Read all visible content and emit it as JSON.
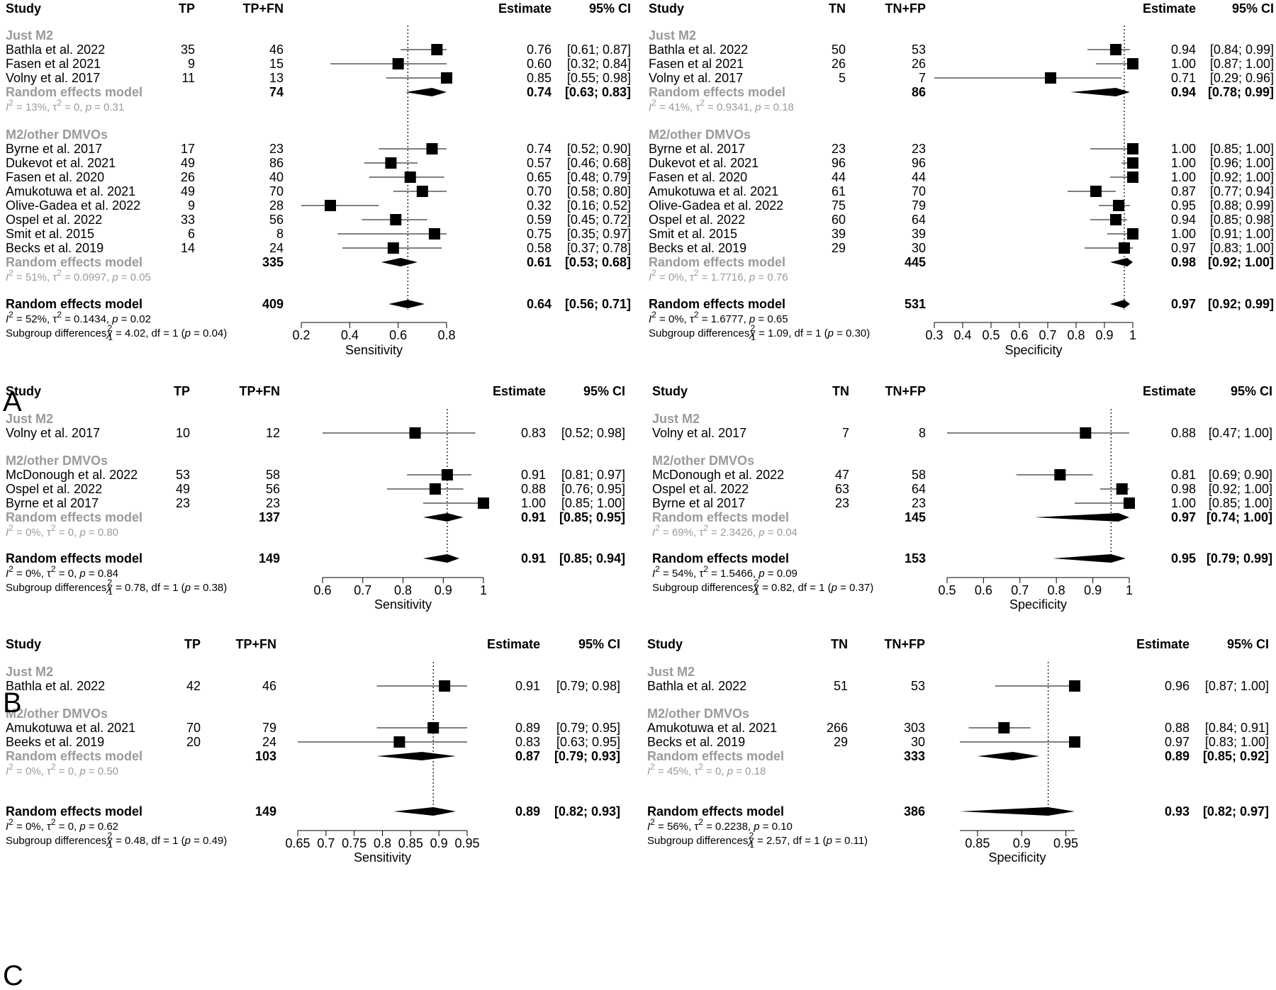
{
  "figure_labels": [
    "A",
    "B",
    "C"
  ],
  "chart_data": [
    {
      "type": "forest",
      "panel": "A",
      "measure": "Sensitivity",
      "columns": {
        "study": "Study",
        "n1": "TP",
        "n2": "TP+FN",
        "estimate": "Estimate",
        "ci": "95% CI"
      },
      "xlabel": "Sensitivity",
      "xlim": [
        0.2,
        0.8
      ],
      "xticks": [
        "0.2",
        "0.4",
        "0.6",
        "0.8"
      ],
      "ref": 0.64,
      "groups": [
        {
          "name": "Just M2",
          "studies": [
            {
              "study": "Bathla et al. 2022",
              "n1": "35",
              "n2": "46",
              "est": 0.76,
              "lo": 0.61,
              "hi": 0.87,
              "est_txt": "0.76",
              "ci_txt": "[0.61; 0.87]"
            },
            {
              "study": "Fasen et al 2021",
              "n1": "9",
              "n2": "15",
              "est": 0.6,
              "lo": 0.32,
              "hi": 0.84,
              "est_txt": "0.60",
              "ci_txt": "[0.32; 0.84]"
            },
            {
              "study": "Volny et al. 2017",
              "n1": "11",
              "n2": "13",
              "est": 0.85,
              "lo": 0.55,
              "hi": 0.98,
              "est_txt": "0.85",
              "ci_txt": "[0.55; 0.98]"
            }
          ],
          "pooled": {
            "label": "Random effects model",
            "total": "74",
            "est": 0.74,
            "lo": 0.63,
            "hi": 0.83,
            "est_txt": "0.74",
            "ci_txt": "[0.63; 0.83]"
          },
          "het": {
            "i2": "13%",
            "tau2": "0",
            "p": "0.31"
          }
        },
        {
          "name": "M2/other DMVOs",
          "studies": [
            {
              "study": "Byrne et al. 2017",
              "n1": "17",
              "n2": "23",
              "est": 0.74,
              "lo": 0.52,
              "hi": 0.9,
              "est_txt": "0.74",
              "ci_txt": "[0.52; 0.90]"
            },
            {
              "study": "Dukevot et al. 2021",
              "n1": "49",
              "n2": "86",
              "est": 0.57,
              "lo": 0.46,
              "hi": 0.68,
              "est_txt": "0.57",
              "ci_txt": "[0.46; 0.68]"
            },
            {
              "study": "Fasen et al. 2020",
              "n1": "26",
              "n2": "40",
              "est": 0.65,
              "lo": 0.48,
              "hi": 0.79,
              "est_txt": "0.65",
              "ci_txt": "[0.48; 0.79]"
            },
            {
              "study": "Amukotuwa et al. 2021",
              "n1": "49",
              "n2": "70",
              "est": 0.7,
              "lo": 0.58,
              "hi": 0.8,
              "est_txt": "0.70",
              "ci_txt": "[0.58; 0.80]"
            },
            {
              "study": "Olive-Gadea et al. 2022",
              "n1": "9",
              "n2": "28",
              "est": 0.32,
              "lo": 0.16,
              "hi": 0.52,
              "est_txt": "0.32",
              "ci_txt": "[0.16; 0.52]"
            },
            {
              "study": "Ospel et al. 2022",
              "n1": "33",
              "n2": "56",
              "est": 0.59,
              "lo": 0.45,
              "hi": 0.72,
              "est_txt": "0.59",
              "ci_txt": "[0.45; 0.72]"
            },
            {
              "study": "Smit et al. 2015",
              "n1": "6",
              "n2": "8",
              "est": 0.75,
              "lo": 0.35,
              "hi": 0.97,
              "est_txt": "0.75",
              "ci_txt": "[0.35; 0.97]"
            },
            {
              "study": "Becks et al. 2019",
              "n1": "14",
              "n2": "24",
              "est": 0.58,
              "lo": 0.37,
              "hi": 0.78,
              "est_txt": "0.58",
              "ci_txt": "[0.37; 0.78]"
            }
          ],
          "pooled": {
            "label": "Random effects model",
            "total": "335",
            "est": 0.61,
            "lo": 0.53,
            "hi": 0.68,
            "est_txt": "0.61",
            "ci_txt": "[0.53; 0.68]"
          },
          "het": {
            "i2": "51%",
            "tau2": "0.0997",
            "p": "0.05"
          }
        }
      ],
      "overall": {
        "label": "Random effects model",
        "total": "409",
        "est": 0.64,
        "lo": 0.56,
        "hi": 0.71,
        "est_txt": "0.64",
        "ci_txt": "[0.56; 0.71]",
        "het": {
          "i2": "52%",
          "tau2": "0.1434",
          "p": "0.02"
        },
        "subgroup": {
          "label": "Subgroup differences",
          "chi2": "4.02",
          "df": "1",
          "p": "0.04"
        }
      }
    },
    {
      "type": "forest",
      "panel": "A",
      "measure": "Specificity",
      "columns": {
        "study": "Study",
        "n1": "TN",
        "n2": "TN+FP",
        "estimate": "Estimate",
        "ci": "95% CI"
      },
      "xlabel": "Specificity",
      "xlim": [
        0.3,
        1.0
      ],
      "xticks": [
        "0.3",
        "0.4",
        "0.5",
        "0.6",
        "0.7",
        "0.8",
        "0.9",
        "1"
      ],
      "ref": 0.97,
      "groups": [
        {
          "name": "Just M2",
          "studies": [
            {
              "study": "Bathla et al. 2022",
              "n1": "50",
              "n2": "53",
              "est": 0.94,
              "lo": 0.84,
              "hi": 0.99,
              "est_txt": "0.94",
              "ci_txt": "[0.84; 0.99]"
            },
            {
              "study": "Fasen et al 2021",
              "n1": "26",
              "n2": "26",
              "est": 1.0,
              "lo": 0.87,
              "hi": 1.0,
              "est_txt": "1.00",
              "ci_txt": "[0.87; 1.00]"
            },
            {
              "study": "Volny et al. 2017",
              "n1": "5",
              "n2": "7",
              "est": 0.71,
              "lo": 0.29,
              "hi": 0.96,
              "est_txt": "0.71",
              "ci_txt": "[0.29; 0.96]"
            }
          ],
          "pooled": {
            "label": "Random effects model",
            "total": "86",
            "est": 0.94,
            "lo": 0.78,
            "hi": 0.99,
            "est_txt": "0.94",
            "ci_txt": "[0.78; 0.99]"
          },
          "het": {
            "i2": "41%",
            "tau2": "0.9341",
            "p": "0.18"
          }
        },
        {
          "name": "M2/other DMVOs",
          "studies": [
            {
              "study": "Byrne et al. 2017",
              "n1": "23",
              "n2": "23",
              "est": 1.0,
              "lo": 0.85,
              "hi": 1.0,
              "est_txt": "1.00",
              "ci_txt": "[0.85; 1.00]"
            },
            {
              "study": "Dukevot et al. 2021",
              "n1": "96",
              "n2": "96",
              "est": 1.0,
              "lo": 0.96,
              "hi": 1.0,
              "est_txt": "1.00",
              "ci_txt": "[0.96; 1.00]"
            },
            {
              "study": "Fasen et al. 2020",
              "n1": "44",
              "n2": "44",
              "est": 1.0,
              "lo": 0.92,
              "hi": 1.0,
              "est_txt": "1.00",
              "ci_txt": "[0.92; 1.00]"
            },
            {
              "study": "Amukotuwa et al. 2021",
              "n1": "61",
              "n2": "70",
              "est": 0.87,
              "lo": 0.77,
              "hi": 0.94,
              "est_txt": "0.87",
              "ci_txt": "[0.77; 0.94]"
            },
            {
              "study": "Olive-Gadea et al. 2022",
              "n1": "75",
              "n2": "79",
              "est": 0.95,
              "lo": 0.88,
              "hi": 0.99,
              "est_txt": "0.95",
              "ci_txt": "[0.88; 0.99]"
            },
            {
              "study": "Ospel et al. 2022",
              "n1": "60",
              "n2": "64",
              "est": 0.94,
              "lo": 0.85,
              "hi": 0.98,
              "est_txt": "0.94",
              "ci_txt": "[0.85; 0.98]"
            },
            {
              "study": "Smit et al. 2015",
              "n1": "39",
              "n2": "39",
              "est": 1.0,
              "lo": 0.91,
              "hi": 1.0,
              "est_txt": "1.00",
              "ci_txt": "[0.91; 1.00]"
            },
            {
              "study": "Becks et al. 2019",
              "n1": "29",
              "n2": "30",
              "est": 0.97,
              "lo": 0.83,
              "hi": 1.0,
              "est_txt": "0.97",
              "ci_txt": "[0.83; 1.00]"
            }
          ],
          "pooled": {
            "label": "Random effects model",
            "total": "445",
            "est": 0.98,
            "lo": 0.92,
            "hi": 1.0,
            "est_txt": "0.98",
            "ci_txt": "[0.92; 1.00]"
          },
          "het": {
            "i2": "0%",
            "tau2": "1.7716",
            "p": "0.76"
          }
        }
      ],
      "overall": {
        "label": "Random effects model",
        "total": "531",
        "est": 0.97,
        "lo": 0.92,
        "hi": 0.99,
        "est_txt": "0.97",
        "ci_txt": "[0.92; 0.99]",
        "het": {
          "i2": "0%",
          "tau2": "1.6777",
          "p": "0.65"
        },
        "subgroup": {
          "label": "Subgroup differences",
          "chi2": "1.09",
          "df": "1",
          "p": "0.30"
        }
      }
    },
    {
      "type": "forest",
      "panel": "B",
      "measure": "Sensitivity",
      "columns": {
        "study": "Study",
        "n1": "TP",
        "n2": "TP+FN",
        "estimate": "Estimate",
        "ci": "95% CI"
      },
      "xlabel": "Sensitivity",
      "xlim": [
        0.6,
        1.0
      ],
      "xticks": [
        "0.6",
        "0.7",
        "0.8",
        "0.9",
        "1"
      ],
      "ref": 0.91,
      "groups": [
        {
          "name": "Just M2",
          "studies": [
            {
              "study": "Volny et al. 2017",
              "n1": "10",
              "n2": "12",
              "est": 0.83,
              "lo": 0.52,
              "hi": 0.98,
              "est_txt": "0.83",
              "ci_txt": "[0.52; 0.98]"
            }
          ]
        },
        {
          "name": "M2/other DMVOs",
          "studies": [
            {
              "study": "McDonough et al. 2022",
              "n1": "53",
              "n2": "58",
              "est": 0.91,
              "lo": 0.81,
              "hi": 0.97,
              "est_txt": "0.91",
              "ci_txt": "[0.81; 0.97]"
            },
            {
              "study": "Ospel et al. 2022",
              "n1": "49",
              "n2": "56",
              "est": 0.88,
              "lo": 0.76,
              "hi": 0.95,
              "est_txt": "0.88",
              "ci_txt": "[0.76; 0.95]"
            },
            {
              "study": "Byrne et al 2017",
              "n1": "23",
              "n2": "23",
              "est": 1.0,
              "lo": 0.85,
              "hi": 1.0,
              "est_txt": "1.00",
              "ci_txt": "[0.85; 1.00]"
            }
          ],
          "pooled": {
            "label": "Random effects model",
            "total": "137",
            "est": 0.91,
            "lo": 0.85,
            "hi": 0.95,
            "est_txt": "0.91",
            "ci_txt": "[0.85; 0.95]"
          },
          "het": {
            "i2": "0%",
            "tau2": "0",
            "p": "0.80"
          }
        }
      ],
      "overall": {
        "label": "Random effects model",
        "total": "149",
        "est": 0.91,
        "lo": 0.85,
        "hi": 0.94,
        "est_txt": "0.91",
        "ci_txt": "[0.85; 0.94]",
        "het": {
          "i2": "0%",
          "tau2": "0",
          "p": "0.84"
        },
        "subgroup": {
          "label": "Subgroup differences",
          "chi2": "0.78",
          "df": "1",
          "p": "0.38"
        }
      }
    },
    {
      "type": "forest",
      "panel": "B",
      "measure": "Specificity",
      "columns": {
        "study": "Study",
        "n1": "TN",
        "n2": "TN+FP",
        "estimate": "Estimate",
        "ci": "95% CI"
      },
      "xlabel": "Specificity",
      "xlim": [
        0.5,
        1.0
      ],
      "xticks": [
        "0.5",
        "0.6",
        "0.7",
        "0.8",
        "0.9",
        "1"
      ],
      "ref": 0.95,
      "groups": [
        {
          "name": "Just M2",
          "studies": [
            {
              "study": "Volny et al. 2017",
              "n1": "7",
              "n2": "8",
              "est": 0.88,
              "lo": 0.47,
              "hi": 1.0,
              "est_txt": "0.88",
              "ci_txt": "[0.47; 1.00]"
            }
          ]
        },
        {
          "name": "M2/other DMVOs",
          "studies": [
            {
              "study": "McDonough et al. 2022",
              "n1": "47",
              "n2": "58",
              "est": 0.81,
              "lo": 0.69,
              "hi": 0.9,
              "est_txt": "0.81",
              "ci_txt": "[0.69; 0.90]"
            },
            {
              "study": "Ospel et al. 2022",
              "n1": "63",
              "n2": "64",
              "est": 0.98,
              "lo": 0.92,
              "hi": 1.0,
              "est_txt": "0.98",
              "ci_txt": "[0.92; 1.00]"
            },
            {
              "study": "Byrne et al 2017",
              "n1": "23",
              "n2": "23",
              "est": 1.0,
              "lo": 0.85,
              "hi": 1.0,
              "est_txt": "1.00",
              "ci_txt": "[0.85; 1.00]"
            }
          ],
          "pooled": {
            "label": "Random effects model",
            "total": "145",
            "est": 0.97,
            "lo": 0.74,
            "hi": 1.0,
            "est_txt": "0.97",
            "ci_txt": "[0.74; 1.00]"
          },
          "het": {
            "i2": "69%",
            "tau2": "2.3426",
            "p": "0.04"
          }
        }
      ],
      "overall": {
        "label": "Random effects model",
        "total": "153",
        "est": 0.95,
        "lo": 0.79,
        "hi": 0.99,
        "est_txt": "0.95",
        "ci_txt": "[0.79; 0.99]",
        "het": {
          "i2": "54%",
          "tau2": "1.5466",
          "p": "0.09"
        },
        "subgroup": {
          "label": "Subgroup differences",
          "chi2": "0.82",
          "df": "1",
          "p": "0.37"
        }
      }
    },
    {
      "type": "forest",
      "panel": "C",
      "measure": "Sensitivity",
      "columns": {
        "study": "Study",
        "n1": "TP",
        "n2": "TP+FN",
        "estimate": "Estimate",
        "ci": "95% CI"
      },
      "xlabel": "Sensitivity",
      "xlim": [
        0.65,
        0.95
      ],
      "xticks": [
        "0.65",
        "0.7",
        "0.75",
        "0.8",
        "0.85",
        "0.9",
        "0.95"
      ],
      "ref": 0.89,
      "groups": [
        {
          "name": "Just M2",
          "studies": [
            {
              "study": "Bathla et al. 2022",
              "n1": "42",
              "n2": "46",
              "est": 0.91,
              "lo": 0.79,
              "hi": 0.98,
              "est_txt": "0.91",
              "ci_txt": "[0.79; 0.98]"
            }
          ]
        },
        {
          "name": "M2/other DMVOs",
          "studies": [
            {
              "study": "Amukotuwa et al. 2021",
              "n1": "70",
              "n2": "79",
              "est": 0.89,
              "lo": 0.79,
              "hi": 0.95,
              "est_txt": "0.89",
              "ci_txt": "[0.79; 0.95]"
            },
            {
              "study": "Beeks et al. 2019",
              "n1": "20",
              "n2": "24",
              "est": 0.83,
              "lo": 0.63,
              "hi": 0.95,
              "est_txt": "0.83",
              "ci_txt": "[0.63; 0.95]"
            }
          ],
          "pooled": {
            "label": "Random effects model",
            "total": "103",
            "est": 0.87,
            "lo": 0.79,
            "hi": 0.93,
            "est_txt": "0.87",
            "ci_txt": "[0.79; 0.93]"
          },
          "het": {
            "i2": "0%",
            "tau2": "0",
            "p": "0.50"
          }
        }
      ],
      "overall": {
        "label": "Random effects model",
        "total": "149",
        "est": 0.89,
        "lo": 0.82,
        "hi": 0.93,
        "est_txt": "0.89",
        "ci_txt": "[0.82; 0.93]",
        "het": {
          "i2": "0%",
          "tau2": "0",
          "p": "0.62"
        },
        "subgroup": {
          "label": "Subgroup differences",
          "chi2": "0.48",
          "df": "1",
          "p": "0.49"
        }
      }
    },
    {
      "type": "forest",
      "panel": "C",
      "measure": "Specificity",
      "columns": {
        "study": "Study",
        "n1": "TN",
        "n2": "TN+FP",
        "estimate": "Estimate",
        "ci": "95% CI"
      },
      "xlabel": "Specificity",
      "xlim": [
        0.83,
        0.96
      ],
      "xticks": [
        "0.85",
        "0.9",
        "0.95"
      ],
      "ref": 0.93,
      "groups": [
        {
          "name": "Just M2",
          "studies": [
            {
              "study": "Bathla et al. 2022",
              "n1": "51",
              "n2": "53",
              "est": 0.96,
              "lo": 0.87,
              "hi": 1.0,
              "est_txt": "0.96",
              "ci_txt": "[0.87; 1.00]"
            }
          ]
        },
        {
          "name": "M2/other DMVOs",
          "studies": [
            {
              "study": "Amukotuwa et al. 2021",
              "n1": "266",
              "n2": "303",
              "est": 0.88,
              "lo": 0.84,
              "hi": 0.91,
              "est_txt": "0.88",
              "ci_txt": "[0.84; 0.91]"
            },
            {
              "study": "Becks et al. 2019",
              "n1": "29",
              "n2": "30",
              "est": 0.97,
              "lo": 0.83,
              "hi": 1.0,
              "est_txt": "0.97",
              "ci_txt": "[0.83; 1.00]"
            }
          ],
          "pooled": {
            "label": "Random effects model",
            "total": "333",
            "est": 0.89,
            "lo": 0.85,
            "hi": 0.92,
            "est_txt": "0.89",
            "ci_txt": "[0.85; 0.92]"
          },
          "het": {
            "i2": "45%",
            "tau2": "0",
            "p": "0.18"
          }
        }
      ],
      "overall": {
        "label": "Random effects model",
        "total": "386",
        "est": 0.93,
        "lo": 0.82,
        "hi": 0.97,
        "est_txt": "0.93",
        "ci_txt": "[0.82; 0.97]",
        "het": {
          "i2": "56%",
          "tau2": "0.2238",
          "p": "0.10"
        },
        "subgroup": {
          "label": "Subgroup differences",
          "chi2": "2.57",
          "df": "1",
          "p": "0.11"
        }
      }
    }
  ]
}
